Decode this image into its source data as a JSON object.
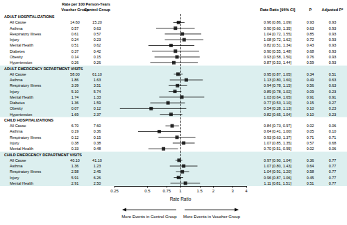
{
  "chart_data": {
    "type": "forest",
    "header": {
      "rate_title": "Rate per 100 Person-Years",
      "voucher": "Voucher Group",
      "control": "Control Group",
      "ratio": "Rate Ratio [95% CI]",
      "p": "P",
      "adjusted_p": "Adjusted P*"
    },
    "xlabel": "Rate Ratio",
    "log": "x",
    "grid": false,
    "xlim": [
      0.25,
      4
    ],
    "xticks": [
      0.25,
      0.5,
      0.75,
      1,
      1.5,
      2,
      3,
      4
    ],
    "reference_line": 1,
    "color": "#000000",
    "marker": "square",
    "annotations": {
      "left": "More Events in Control Group",
      "right": "More Events in Voucher Group"
    },
    "sections": [
      {
        "title": "ADULT HOSPITALIZATIONS",
        "rows": [
          {
            "label": "All Cause",
            "voucher": "14.60",
            "control": "15.20",
            "rr": 0.96,
            "ci": [
              0.86,
              1.09
            ],
            "rr_label": "0.96 [0.86, 1.09]",
            "p": "0.93",
            "adjusted_p": "0.93"
          },
          {
            "label": "Asthma",
            "voucher": "0.57",
            "control": "0.63",
            "rr": 0.9,
            "ci": [
              0.6,
              1.35
            ],
            "rr_label": "0.90 [0.60, 1.35]",
            "p": "0.63",
            "adjusted_p": "0.93"
          },
          {
            "label": "Respiratory Illness",
            "voucher": "0.61",
            "control": "0.57",
            "rr": 1.04,
            "ci": [
              0.72,
              1.55
            ],
            "rr_label": "1.04 [0.72, 1.55]",
            "p": "0.85",
            "adjusted_p": "0.93"
          },
          {
            "label": "Injury",
            "voucher": "0.24",
            "control": "0.23",
            "rr": 1.08,
            "ci": [
              0.72,
              1.62
            ],
            "rr_label": "1.08 [0.72, 1.62]",
            "p": "0.72",
            "adjusted_p": "0.93"
          },
          {
            "label": "Mental Health",
            "voucher": "0.51",
            "control": "0.62",
            "rr": 0.82,
            "ci": [
              0.51,
              1.34
            ],
            "rr_label": "0.82 [0.51, 1.34]",
            "p": "0.43",
            "adjusted_p": "0.93"
          },
          {
            "label": "Diabetes",
            "voucher": "0.37",
            "control": "0.42",
            "rr": 0.9,
            "ci": [
              0.55,
              1.48
            ],
            "rr_label": "0.90 [0.55, 1.48]",
            "p": "0.68",
            "adjusted_p": "0.93"
          },
          {
            "label": "Obesity",
            "voucher": "0.14",
            "control": "0.15",
            "rr": 0.93,
            "ci": [
              0.58,
              1.5
            ],
            "rr_label": "0.93 [0.58, 1.50]",
            "p": "0.76",
            "adjusted_p": "0.93"
          },
          {
            "label": "Hypertension",
            "voucher": "0.26",
            "control": "0.26",
            "rr": 0.87,
            "ci": [
              0.53,
              1.44
            ],
            "rr_label": "0.87 [0.53, 1.44]",
            "p": "0.59",
            "adjusted_p": "0.93"
          }
        ]
      },
      {
        "title": "ADULT EMERGENCY DEPARTMENT VISITS",
        "color": "#dcefef",
        "rows": [
          {
            "label": "All Cause",
            "voucher": "58.00",
            "control": "61.10",
            "rr": 0.95,
            "ci": [
              0.87,
              1.05
            ],
            "rr_label": "0.95 [0.87, 1.05]",
            "p": "0.34",
            "adjusted_p": "0.51"
          },
          {
            "label": "Asthma",
            "voucher": "1.86",
            "control": "1.63",
            "rr": 1.13,
            "ci": [
              0.8,
              1.6
            ],
            "rr_label": "1.13 [0.80, 1.60]",
            "p": "0.49",
            "adjusted_p": "0.63"
          },
          {
            "label": "Respiratory Illness",
            "voucher": "3.39",
            "control": "3.51",
            "rr": 0.94,
            "ci": [
              0.78,
              1.15
            ],
            "rr_label": "0.94 [0.78, 1.15]",
            "p": "0.56",
            "adjusted_p": "0.63"
          },
          {
            "label": "Injury",
            "voucher": "5.10",
            "control": "5.74",
            "rr": 0.89,
            "ci": [
              0.78,
              1.02
            ],
            "rr_label": "0.89 [0.78, 1.02]",
            "p": "0.09",
            "adjusted_p": "0.23"
          },
          {
            "label": "Mental Health",
            "voucher": "1.74",
            "control": "1.33",
            "rr": 1.03,
            "ci": [
              0.64,
              1.65
            ],
            "rr_label": "1.03 [0.64, 1.65]",
            "p": "0.91",
            "adjusted_p": "0.91"
          },
          {
            "label": "Diabetes",
            "voucher": "1.36",
            "control": "1.59",
            "rr": 0.77,
            "ci": [
              0.53,
              1.1
            ],
            "rr_label": "0.77 [0.53, 1.10]",
            "p": "0.15",
            "adjusted_p": "0.27"
          },
          {
            "label": "Obesity",
            "voucher": "0.07",
            "control": "0.12",
            "rr": 0.54,
            "ci": [
              0.28,
              1.13
            ],
            "rr_label": "0.54 [0.28, 1.13]",
            "p": "0.10",
            "adjusted_p": "0.23"
          },
          {
            "label": "Hypertension",
            "voucher": "1.69",
            "control": "2.37",
            "rr": 0.82,
            "ci": [
              0.65,
              1.04
            ],
            "rr_label": "0.82 [0.65, 1.04]",
            "p": "0.10",
            "adjusted_p": "0.23"
          }
        ]
      },
      {
        "title": "CHILD HOSPITALIZATIONS",
        "rows": [
          {
            "label": "All Cause",
            "voucher": "6.70",
            "control": "7.60",
            "rr": 0.84,
            "ci": [
              0.73,
              0.97
            ],
            "rr_label": "0.84 [0.73, 0.97]",
            "p": "0.02",
            "adjusted_p": "0.06"
          },
          {
            "label": "Asthma",
            "voucher": "0.19",
            "control": "0.36",
            "rr": 0.64,
            "ci": [
              0.41,
              1.0
            ],
            "rr_label": "0.64 [0.41, 1.00]",
            "p": "0.05",
            "adjusted_p": "0.10"
          },
          {
            "label": "Respiratory Illness",
            "voucher": "0.12",
            "control": "0.15",
            "rr": 0.93,
            "ci": [
              0.63,
              1.37
            ],
            "rr_label": "0.93 [0.63, 1.37]",
            "p": "0.71",
            "adjusted_p": "0.71"
          },
          {
            "label": "Injury",
            "voucher": "0.38",
            "control": "0.38",
            "rr": 1.07,
            "ci": [
              0.85,
              1.35
            ],
            "rr_label": "1.07 [0.85, 1.35]",
            "p": "0.57",
            "adjusted_p": "0.68"
          },
          {
            "label": "Mental Health",
            "voucher": "0.33",
            "control": "0.48",
            "rr": 0.7,
            "ci": [
              0.51,
              0.95
            ],
            "rr_label": "0.70 [0.51, 0.95]",
            "p": "0.02",
            "adjusted_p": "0.06"
          }
        ]
      },
      {
        "title": "CHILD EMERGENCY DEPARTMENT VISITS",
        "color": "#dcefef",
        "rows": [
          {
            "label": "All Cause",
            "voucher": "40.10",
            "control": "41.10",
            "rr": 0.97,
            "ci": [
              0.9,
              1.04
            ],
            "rr_label": "0.97 [0.90, 1.04]",
            "p": "0.36",
            "adjusted_p": "0.77"
          },
          {
            "label": "Asthma",
            "voucher": "1.36",
            "control": "1.23",
            "rr": 1.07,
            "ci": [
              0.8,
              1.43
            ],
            "rr_label": "1.07 [0.80, 1.43]",
            "p": "0.64",
            "adjusted_p": "0.77"
          },
          {
            "label": "Respiratory Illness",
            "voucher": "2.58",
            "control": "2.45",
            "rr": 1.04,
            "ci": [
              0.91,
              1.2
            ],
            "rr_label": "1.04 [0.91, 1.20]",
            "p": "0.58",
            "adjusted_p": "0.77"
          },
          {
            "label": "Injury",
            "voucher": "5.91",
            "control": "6.26",
            "rr": 0.96,
            "ci": [
              0.87,
              1.06
            ],
            "rr_label": "0.96 [0.87, 1.06]",
            "p": "0.45",
            "adjusted_p": "0.77"
          },
          {
            "label": "Mental Health",
            "voucher": "2.91",
            "control": "2.50",
            "rr": 1.11,
            "ci": [
              0.81,
              1.51
            ],
            "rr_label": "1.11 [0.81, 1.51]",
            "p": "0.51",
            "adjusted_p": "0.77"
          }
        ]
      }
    ]
  }
}
